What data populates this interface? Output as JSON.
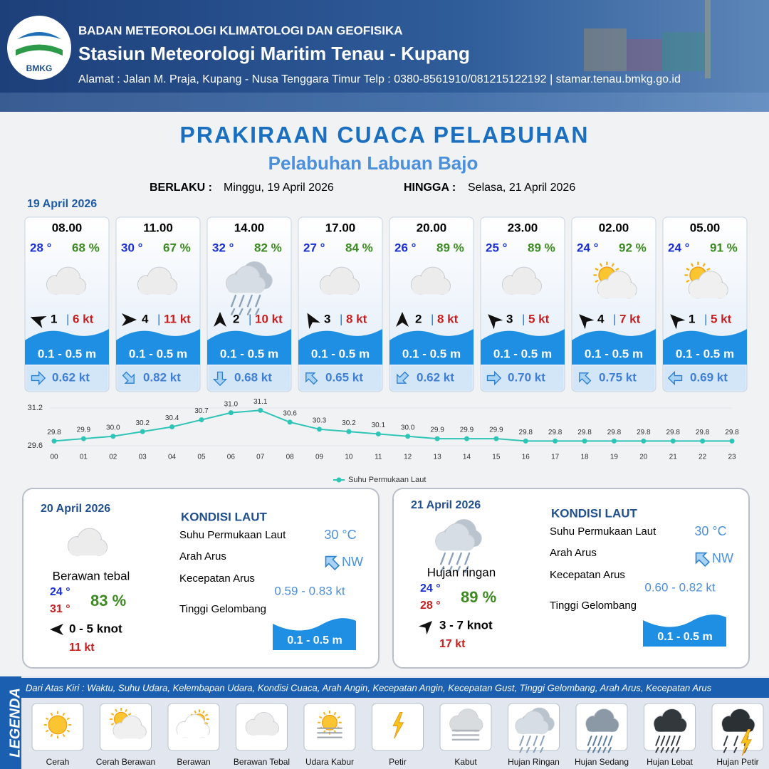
{
  "header": {
    "org": "BADAN METEOROLOGI KLIMATOLOGI DAN GEOFISIKA",
    "station": "Stasiun Meteorologi Maritim Tenau - Kupang",
    "address": "Alamat : Jalan M. Praja, Kupang - Nusa Tenggara Timur Telp : 0380-8561910/081215122192  | stamar.tenau.bmkg.go.id",
    "logo": "BMKG"
  },
  "title": "PRAKIRAAN CUACA PELABUHAN",
  "subtitle": "Pelabuhan Labuan Bajo",
  "validity": {
    "from_label": "BERLAKU :",
    "from": "Minggu, 19 April 2026",
    "to_label": "HINGGA :",
    "to": "Selasa, 21 April 2026"
  },
  "forecast": {
    "date": "19 April 2026",
    "cards": [
      {
        "time": "08.00",
        "temp": "28 °",
        "humidity": "68 %",
        "legend_item": 3,
        "wind_arrow_deg": 290,
        "wind": "1",
        "gust": "6 kt",
        "wave": "0.1 - 0.5 m",
        "current_arrow_deg": 90,
        "current": "0.62 kt"
      },
      {
        "time": "11.00",
        "temp": "30 °",
        "humidity": "67 %",
        "legend_item": 3,
        "wind_arrow_deg": 90,
        "wind": "4",
        "gust": "11 kt",
        "wave": "0.1 - 0.5 m",
        "current_arrow_deg": 135,
        "current": "0.82 kt"
      },
      {
        "time": "14.00",
        "temp": "32 °",
        "humidity": "82 %",
        "legend_item": 7,
        "wind_arrow_deg": 0,
        "wind": "2",
        "gust": "10 kt",
        "wave": "0.1 - 0.5 m",
        "current_arrow_deg": 180,
        "current": "0.68 kt"
      },
      {
        "time": "17.00",
        "temp": "27 °",
        "humidity": "84 %",
        "legend_item": 3,
        "wind_arrow_deg": 330,
        "wind": "3",
        "gust": "8 kt",
        "wave": "0.1 - 0.5 m",
        "current_arrow_deg": 315,
        "current": "0.65 kt"
      },
      {
        "time": "20.00",
        "temp": "26 °",
        "humidity": "89 %",
        "legend_item": 3,
        "wind_arrow_deg": 0,
        "wind": "2",
        "gust": "8 kt",
        "wave": "0.1 - 0.5 m",
        "current_arrow_deg": 225,
        "current": "0.62 kt"
      },
      {
        "time": "23.00",
        "temp": "25 °",
        "humidity": "89 %",
        "legend_item": 3,
        "wind_arrow_deg": 315,
        "wind": "3",
        "gust": "5 kt",
        "wave": "0.1 - 0.5 m",
        "current_arrow_deg": 90,
        "current": "0.70 kt"
      },
      {
        "time": "02.00",
        "temp": "24 °",
        "humidity": "92 %",
        "legend_item": 1,
        "wind_arrow_deg": 315,
        "wind": "4",
        "gust": "7 kt",
        "wave": "0.1 - 0.5 m",
        "current_arrow_deg": 315,
        "current": "0.75 kt"
      },
      {
        "time": "05.00",
        "temp": "24 °",
        "humidity": "91 %",
        "legend_item": 1,
        "wind_arrow_deg": 315,
        "wind": "1",
        "gust": "5 kt",
        "wave": "0.1 - 0.5 m",
        "current_arrow_deg": 270,
        "current": "0.69 kt"
      }
    ]
  },
  "chart_data": {
    "type": "line",
    "categories": [
      "00",
      "01",
      "02",
      "03",
      "04",
      "05",
      "06",
      "07",
      "08",
      "09",
      "10",
      "11",
      "12",
      "13",
      "14",
      "15",
      "16",
      "17",
      "18",
      "19",
      "20",
      "21",
      "22",
      "23"
    ],
    "series": [
      {
        "name": "Suhu Permukaan Laut",
        "color": "#2ec4b6",
        "values": [
          29.8,
          29.9,
          30.0,
          30.2,
          30.4,
          30.7,
          31.0,
          31.1,
          30.6,
          30.3,
          30.2,
          30.1,
          30.0,
          29.9,
          29.9,
          29.9,
          29.8,
          29.8,
          29.8,
          29.8,
          29.8,
          29.8,
          29.8,
          29.8
        ],
        "value_labels": [
          "29.8",
          "29.9",
          "30.0",
          "30.2",
          "30.4",
          "30.7",
          "31.0",
          "31.1",
          "30.6",
          "30.3",
          "30.2",
          "30.1",
          "30.0",
          "29.9",
          "29.9",
          "29.9",
          "29.8",
          "29.8",
          "29.8",
          "29.8",
          "29.8",
          "29.8",
          "29.8",
          "29.8"
        ]
      }
    ],
    "ylim": [
      29.6,
      31.2
    ],
    "yticks": [
      29.6,
      31.2
    ],
    "legend": "bottom"
  },
  "days": [
    {
      "date": "20 April 2026",
      "legend_item": 3,
      "condition": "Berawan tebal",
      "temp_min": "24 °",
      "temp_max": "31 °",
      "humidity": "83 %",
      "wind_arrow_deg": 270,
      "wind": "0  - 5 knot",
      "gust": "11 kt",
      "sea_title": "KONDISI LAUT",
      "sst_label": "Suhu Permukaan Laut",
      "sst": "30 °C",
      "dir_label": "Arah Arus",
      "dir": "NW",
      "dir_arrow_deg": 315,
      "speed_label": "Kecepatan Arus",
      "speed": "0.59 - 0.83 kt",
      "wave_label": "Tinggi Gelombang",
      "wave": "0.1 - 0.5 m"
    },
    {
      "date": "21 April 2026",
      "legend_item": 7,
      "condition": "Hujan ringan",
      "temp_min": "24 °",
      "temp_max": "28 °",
      "humidity": "89 %",
      "wind_arrow_deg": 45,
      "wind": "3  - 7 knot",
      "gust": "17 kt",
      "sea_title": "KONDISI LAUT",
      "sst_label": "Suhu Permukaan Laut",
      "sst": "30 °C",
      "dir_label": "Arah Arus",
      "dir": "NW",
      "dir_arrow_deg": 315,
      "speed_label": "Kecepatan Arus",
      "speed": "0.60 - 0.82 kt",
      "wave_label": "Tinggi Gelombang",
      "wave": "0.1 - 0.5 m"
    }
  ],
  "legend": {
    "title": "LEGENDA",
    "description": "Dari Atas Kiri : Waktu, Suhu Udara, Kelembapan Udara, Kondisi Cuaca, Arah Angin, Kecepatan Angin, Kecepatan Gust, Tinggi Gelombang, Arah Arus, Kecepatan Arus",
    "items": [
      "Cerah",
      "Cerah Berawan",
      "Berawan",
      "Berawan Tebal",
      "Udara Kabur",
      "Petir",
      "Kabut",
      "Hujan Ringan",
      "Hujan Sedang",
      "Hujan Lebat",
      "Hujan Petir"
    ]
  }
}
